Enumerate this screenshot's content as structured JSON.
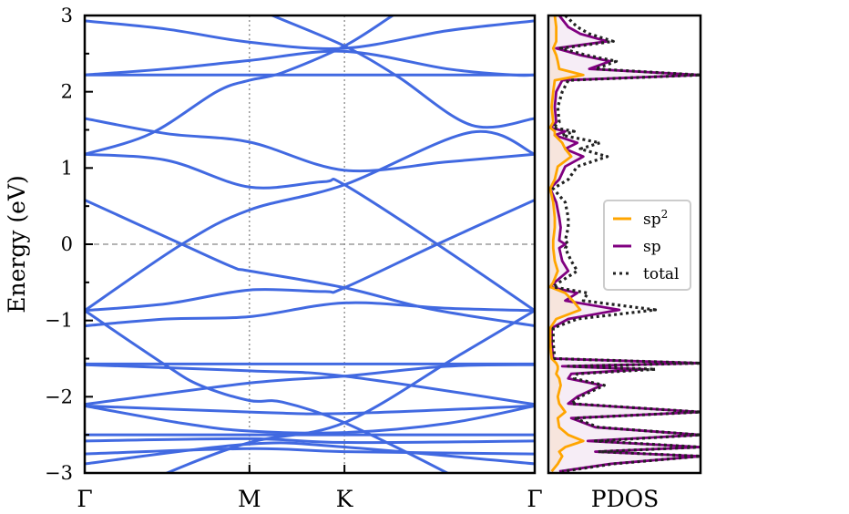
{
  "chart_data": [
    {
      "type": "line",
      "title": "",
      "ylabel": "Energy (eV)",
      "xlabel": "",
      "ylim": [
        -3,
        3
      ],
      "yticks": [
        "3",
        "2",
        "1",
        "0",
        "−1",
        "−2",
        "−3"
      ],
      "ytick_values": [
        3,
        2,
        1,
        0,
        -1,
        -2,
        -3
      ],
      "xticks": [
        {
          "label": "Γ",
          "k": 0
        },
        {
          "label": "M",
          "k": 1
        },
        {
          "label": "K",
          "k": 1.577
        },
        {
          "label": "Γ",
          "k": 2.732
        }
      ],
      "xlim": [
        0,
        2.732
      ],
      "fermi_level": 0,
      "band_color": "#4169e1",
      "bands": [
        [
          [
            0,
            2.93
          ],
          [
            0.5,
            2.82
          ],
          [
            1,
            2.65
          ],
          [
            1.577,
            2.57
          ],
          [
            2.2,
            2.8
          ],
          [
            2.732,
            2.93
          ]
        ],
        [
          [
            0,
            2.22
          ],
          [
            2.732,
            2.22
          ]
        ],
        [
          [
            0,
            2.22
          ],
          [
            0.5,
            2.3
          ],
          [
            1,
            2.41
          ],
          [
            1.577,
            2.53
          ],
          [
            2.2,
            2.3
          ],
          [
            2.6,
            2.22
          ],
          [
            2.732,
            2.22
          ]
        ],
        [
          [
            0,
            1.18
          ],
          [
            0.4,
            1.45
          ],
          [
            0.8,
            2.0
          ],
          [
            1,
            2.15
          ],
          [
            1.2,
            2.25
          ],
          [
            1.577,
            2.6
          ],
          [
            1.87,
            3.0
          ],
          [
            1.95,
            3.1
          ]
        ],
        [
          [
            1.05,
            3.1
          ],
          [
            1.14,
            3.0
          ],
          [
            1.577,
            2.6
          ],
          [
            1.9,
            2.2
          ],
          [
            2.35,
            1.56
          ],
          [
            2.732,
            1.65
          ]
        ],
        [
          [
            0,
            1.65
          ],
          [
            0.5,
            1.45
          ],
          [
            1,
            1.34
          ],
          [
            1.577,
            0.97
          ],
          [
            2.2,
            1.08
          ],
          [
            2.732,
            1.18
          ]
        ],
        [
          [
            0,
            1.18
          ],
          [
            0.5,
            1.1
          ],
          [
            1,
            0.75
          ],
          [
            1.45,
            0.82
          ],
          [
            1.577,
            0.78
          ],
          [
            2.14,
            0
          ],
          [
            2.732,
            -0.87
          ]
        ],
        [
          [
            0,
            -0.87
          ],
          [
            0.59,
            0
          ],
          [
            1,
            0.45
          ],
          [
            1.577,
            0.78
          ],
          [
            2.35,
            1.47
          ],
          [
            2.732,
            1.18
          ]
        ],
        [
          [
            0,
            0.58
          ],
          [
            0.59,
            0
          ],
          [
            0.9,
            -0.3
          ],
          [
            1,
            -0.35
          ],
          [
            1.577,
            -0.57
          ],
          [
            2.1,
            -0.85
          ],
          [
            2.732,
            -1.07
          ]
        ],
        [
          [
            0,
            -0.87
          ],
          [
            0.5,
            -0.78
          ],
          [
            1,
            -0.6
          ],
          [
            1.45,
            -0.62
          ],
          [
            1.577,
            -0.57
          ],
          [
            2.14,
            0
          ],
          [
            2.732,
            0.58
          ]
        ],
        [
          [
            0,
            -1.07
          ],
          [
            0.5,
            -0.98
          ],
          [
            1,
            -0.95
          ],
          [
            1.577,
            -0.77
          ],
          [
            2.2,
            -0.84
          ],
          [
            2.732,
            -0.87
          ]
        ],
        [
          [
            0,
            -0.87
          ],
          [
            0.48,
            -1.57
          ],
          [
            0.7,
            -1.85
          ],
          [
            1,
            -2.05
          ],
          [
            1.2,
            -2.07
          ],
          [
            1.577,
            -2.34
          ],
          [
            2.2,
            -3.0
          ],
          [
            2.25,
            -3.1
          ]
        ],
        [
          [
            0.45,
            -3.1
          ],
          [
            0.5,
            -3.0
          ],
          [
            1,
            -2.6
          ],
          [
            1.577,
            -2.34
          ],
          [
            2.27,
            -1.46
          ],
          [
            2.732,
            -0.87
          ]
        ],
        [
          [
            0,
            -1.57
          ],
          [
            2.732,
            -1.57
          ]
        ],
        [
          [
            0,
            -1.58
          ],
          [
            1,
            -1.66
          ],
          [
            1.577,
            -1.73
          ],
          [
            2.732,
            -2.1
          ]
        ],
        [
          [
            0,
            -2.1
          ],
          [
            1,
            -1.82
          ],
          [
            1.577,
            -1.73
          ],
          [
            2.2,
            -1.6
          ],
          [
            2.732,
            -1.58
          ]
        ],
        [
          [
            0,
            -2.12
          ],
          [
            1,
            -2.2
          ],
          [
            1.577,
            -2.22
          ],
          [
            2.732,
            -2.12
          ]
        ],
        [
          [
            0,
            -2.12
          ],
          [
            0.6,
            -2.35
          ],
          [
            1,
            -2.45
          ],
          [
            1.577,
            -2.47
          ],
          [
            2.2,
            -2.35
          ],
          [
            2.732,
            -2.12
          ]
        ],
        [
          [
            0,
            -2.5
          ],
          [
            2.732,
            -2.5
          ]
        ],
        [
          [
            0,
            -2.58
          ],
          [
            1,
            -2.55
          ],
          [
            1.577,
            -2.6
          ],
          [
            2.732,
            -2.58
          ]
        ],
        [
          [
            0,
            -2.75
          ],
          [
            1,
            -2.68
          ],
          [
            1.577,
            -2.72
          ],
          [
            2.732,
            -2.75
          ]
        ],
        [
          [
            0,
            -2.88
          ],
          [
            1,
            -2.62
          ],
          [
            1.577,
            -2.66
          ],
          [
            2.732,
            -2.88
          ]
        ]
      ]
    },
    {
      "type": "line",
      "title": "",
      "xlabel": "PDOS",
      "ylim": [
        -3,
        3
      ],
      "legend": "center-right",
      "energy": [
        3.0,
        2.85,
        2.76,
        2.66,
        2.57,
        2.48,
        2.4,
        2.3,
        2.22,
        2.15,
        2.0,
        1.8,
        1.6,
        1.53,
        1.48,
        1.43,
        1.33,
        1.25,
        1.15,
        1.02,
        0.85,
        0.73,
        0.55,
        0.35,
        0.22,
        0.05,
        0.0,
        -0.05,
        -0.22,
        -0.35,
        -0.5,
        -0.56,
        -0.64,
        -0.74,
        -0.86,
        -0.98,
        -1.1,
        -1.3,
        -1.5,
        -1.56,
        -1.6,
        -1.64,
        -1.7,
        -1.76,
        -1.85,
        -2.0,
        -2.09,
        -2.2,
        -2.28,
        -2.4,
        -2.5,
        -2.58,
        -2.66,
        -2.72,
        -2.78,
        -2.88,
        -2.98
      ],
      "series": [
        {
          "name": "sp2",
          "legend_label": "sp",
          "legend_sup": "2",
          "color": "#ffa500",
          "style": "solid",
          "values": [
            0.03,
            0.04,
            0.04,
            0.04,
            0.02,
            0.04,
            0.05,
            0.06,
            0.22,
            0.03,
            0.02,
            0.01,
            0.02,
            0.0,
            0.03,
            0.03,
            0.08,
            0.1,
            0.14,
            0.05,
            0.03,
            0.0,
            0.02,
            0.03,
            0.03,
            0.02,
            0.02,
            0.02,
            0.03,
            0.05,
            0.02,
            0.0,
            0.1,
            0.15,
            0.2,
            0.04,
            0.0,
            0.0,
            0.01,
            0.04,
            0.05,
            0.05,
            0.04,
            0.06,
            0.07,
            0.05,
            0.06,
            0.1,
            0.05,
            0.06,
            0.12,
            0.22,
            0.1,
            0.06,
            0.08,
            0.05,
            0.01
          ]
        },
        {
          "name": "sp",
          "legend_label": "sp",
          "legend_sup": "",
          "color": "#800080",
          "style": "solid",
          "values": [
            0.06,
            0.12,
            0.2,
            0.38,
            0.04,
            0.2,
            0.4,
            0.26,
            1.0,
            0.08,
            0.04,
            0.03,
            0.04,
            0.0,
            0.1,
            0.03,
            0.18,
            0.1,
            0.22,
            0.1,
            0.06,
            0.0,
            0.04,
            0.06,
            0.07,
            0.06,
            0.1,
            0.06,
            0.08,
            0.12,
            0.03,
            0.0,
            0.18,
            0.1,
            0.46,
            0.12,
            0.01,
            0.01,
            0.02,
            1.0,
            0.08,
            0.62,
            0.14,
            0.12,
            0.34,
            0.18,
            0.12,
            1.0,
            0.14,
            0.3,
            1.0,
            0.25,
            1.0,
            0.3,
            1.0,
            0.4,
            0.06
          ]
        },
        {
          "name": "total",
          "legend_label": "total",
          "legend_sup": "",
          "color": "#222222",
          "style": "dotted",
          "values": [
            0.1,
            0.18,
            0.26,
            0.42,
            0.07,
            0.24,
            0.44,
            0.3,
            1.0,
            0.12,
            0.08,
            0.05,
            0.06,
            0.02,
            0.16,
            0.08,
            0.33,
            0.2,
            0.38,
            0.18,
            0.12,
            0.02,
            0.1,
            0.12,
            0.12,
            0.1,
            0.12,
            0.1,
            0.14,
            0.18,
            0.06,
            0.02,
            0.25,
            0.22,
            0.7,
            0.18,
            0.02,
            0.02,
            0.03,
            1.0,
            0.12,
            0.7,
            0.18,
            0.16,
            0.36,
            0.2,
            0.14,
            1.0,
            0.16,
            0.32,
            1.0,
            0.3,
            1.0,
            0.32,
            1.0,
            0.42,
            0.08
          ]
        }
      ]
    }
  ]
}
